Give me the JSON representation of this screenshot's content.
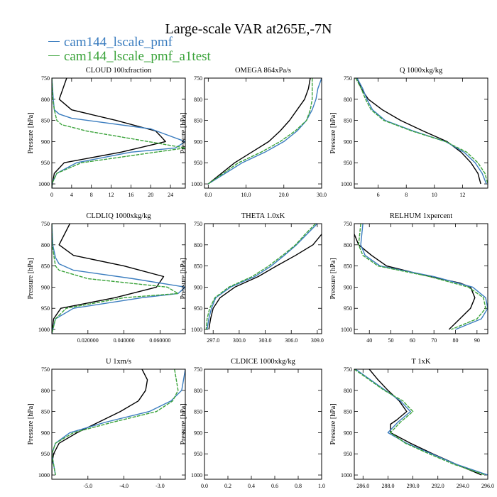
{
  "title": "Large-scale VAR at265E,-7N",
  "legend": [
    {
      "name": "cam144_lscale_pmf",
      "color": "#3b7dbf"
    },
    {
      "name": "cam144_lscale_pmf_a1test",
      "color": "#3aa33a"
    }
  ],
  "colors": {
    "obs": "#000000",
    "pmf": "#3b7dbf",
    "a1test": "#3aa33a"
  },
  "chart_data": [
    {
      "type": "line",
      "title": "CLOUD  100xfraction",
      "ylabel": "Pressure [hPa]",
      "xlim": [
        0,
        27
      ],
      "ylim": [
        750,
        1010
      ],
      "xticks": [
        0,
        4,
        8,
        12,
        16,
        20,
        24
      ],
      "xticklabels": [
        "0",
        "4",
        "8",
        "12",
        "16",
        "20",
        "24"
      ],
      "yticks": [
        750,
        800,
        850,
        900,
        950,
        1000
      ],
      "yticklabels": [
        "750",
        "800",
        "850",
        "900",
        "950",
        "1000"
      ],
      "series": [
        {
          "key": "obs",
          "y": [
            750,
            800,
            825,
            850,
            875,
            887,
            900,
            925,
            950,
            975,
            1000,
            1010
          ],
          "x": [
            3,
            1.5,
            4,
            13,
            21,
            22,
            23,
            14,
            2.5,
            0.5,
            0.1,
            0
          ]
        },
        {
          "key": "pmf",
          "y": [
            750,
            800,
            825,
            835,
            845,
            870,
            900,
            915,
            925,
            950,
            975,
            1000,
            1010
          ],
          "x": [
            0,
            0.3,
            0.5,
            1.5,
            4,
            20,
            27,
            25,
            16,
            5,
            1,
            0,
            0
          ]
        },
        {
          "key": "a1test",
          "y": [
            750,
            800,
            825,
            850,
            860,
            875,
            895,
            915,
            925,
            950,
            975,
            1000,
            1010
          ],
          "x": [
            0,
            0.2,
            0.5,
            1,
            2,
            7,
            17,
            27,
            21,
            6,
            1,
            0,
            0
          ]
        }
      ]
    },
    {
      "type": "line",
      "title": "OMEGA  864xPa/s",
      "ylabel": "Pressure [hPa]",
      "xlim": [
        -1,
        30
      ],
      "ylim": [
        750,
        1010
      ],
      "xticks": [
        0,
        10,
        20,
        30
      ],
      "xticklabels": [
        "0.0",
        "10.0",
        "20.0",
        "30.0"
      ],
      "yticks": [
        750,
        800,
        850,
        900,
        950,
        1000
      ],
      "yticklabels": [
        "750",
        "800",
        "850",
        "900",
        "950",
        "1000"
      ],
      "series": [
        {
          "key": "obs",
          "y": [
            750,
            775,
            800,
            825,
            850,
            875,
            900,
            925,
            950,
            975,
            1000
          ],
          "x": [
            27,
            26.5,
            25.5,
            23.5,
            21.5,
            19,
            16,
            11.5,
            7,
            3.5,
            0
          ]
        },
        {
          "key": "pmf",
          "y": [
            750,
            775,
            800,
            825,
            850,
            875,
            900,
            925,
            950,
            975,
            1000
          ],
          "x": [
            30,
            29,
            28.5,
            27.5,
            26,
            23.5,
            20,
            15,
            9,
            4.5,
            0
          ]
        },
        {
          "key": "a1test",
          "y": [
            750,
            775,
            800,
            825,
            850,
            875,
            900,
            925,
            950,
            975,
            1000
          ],
          "x": [
            27.5,
            27.5,
            27.5,
            27,
            26,
            23,
            19,
            14,
            8,
            4,
            0
          ]
        }
      ]
    },
    {
      "type": "line",
      "title": "Q  1000xkg/kg",
      "ylabel": "Pressure [hPa]",
      "xlim": [
        4.3,
        13.8
      ],
      "ylim": [
        750,
        1010
      ],
      "xticks": [
        6,
        8,
        10,
        12
      ],
      "xticklabels": [
        "6",
        "8",
        "10",
        "12"
      ],
      "yticks": [
        750,
        800,
        850,
        900,
        950,
        1000
      ],
      "yticklabels": [
        "750",
        "800",
        "850",
        "900",
        "950",
        "1000"
      ],
      "series": [
        {
          "key": "obs",
          "y": [
            750,
            775,
            800,
            825,
            850,
            875,
            900,
            925,
            950,
            975,
            1000
          ],
          "x": [
            4.5,
            4.8,
            5.3,
            6.3,
            7.6,
            9.2,
            10.9,
            11.9,
            12.6,
            13.1,
            13.3
          ]
        },
        {
          "key": "pmf",
          "y": [
            750,
            775,
            800,
            825,
            850,
            875,
            900,
            925,
            950,
            975,
            1000
          ],
          "x": [
            4.5,
            4.9,
            5.2,
            5.6,
            6.5,
            8.5,
            10.8,
            12.1,
            12.9,
            13.4,
            13.7
          ]
        },
        {
          "key": "a1test",
          "y": [
            750,
            775,
            800,
            825,
            850,
            875,
            900,
            925,
            950,
            975,
            1000
          ],
          "x": [
            4.4,
            4.8,
            5.1,
            5.5,
            6.4,
            8.4,
            10.8,
            12.3,
            13.1,
            13.6,
            13.8
          ]
        }
      ]
    },
    {
      "type": "line",
      "title": "CLDLIQ  1000xkg/kg",
      "ylabel": "Pressure [hPa]",
      "xlim": [
        0,
        0.074
      ],
      "ylim": [
        750,
        1010
      ],
      "xticks": [
        0.02,
        0.04,
        0.06
      ],
      "xticklabels": [
        "0.020000",
        "0.040000",
        "0.060000"
      ],
      "yticks": [
        750,
        800,
        850,
        900,
        950,
        1000
      ],
      "yticklabels": [
        "750",
        "800",
        "850",
        "900",
        "950",
        "1000"
      ],
      "series": [
        {
          "key": "obs",
          "y": [
            750,
            800,
            825,
            850,
            875,
            900,
            925,
            950,
            975,
            1010
          ],
          "x": [
            0.01,
            0.004,
            0.012,
            0.04,
            0.062,
            0.058,
            0.035,
            0.005,
            0.001,
            0
          ]
        },
        {
          "key": "pmf",
          "y": [
            750,
            800,
            830,
            845,
            860,
            880,
            900,
            915,
            925,
            950,
            975,
            1010
          ],
          "x": [
            0,
            0.0005,
            0.002,
            0.004,
            0.012,
            0.045,
            0.074,
            0.07,
            0.05,
            0.012,
            0.002,
            0
          ]
        },
        {
          "key": "a1test",
          "y": [
            750,
            800,
            850,
            860,
            880,
            900,
            915,
            925,
            950,
            975,
            1010
          ],
          "x": [
            0,
            0.0002,
            0.002,
            0.004,
            0.02,
            0.064,
            0.07,
            0.04,
            0.008,
            0.002,
            0
          ]
        }
      ]
    },
    {
      "type": "line",
      "title": "THETA  1.0xK",
      "ylabel": "Pressure [hPa]",
      "xlim": [
        296,
        309.5
      ],
      "ylim": [
        750,
        1010
      ],
      "xticks": [
        297,
        300,
        303,
        306,
        309
      ],
      "xticklabels": [
        "297.0",
        "300.0",
        "303.0",
        "306.0",
        "309.0"
      ],
      "yticks": [
        750,
        800,
        850,
        900,
        950,
        1000
      ],
      "yticklabels": [
        "750",
        "800",
        "850",
        "900",
        "950",
        "1000"
      ],
      "series": [
        {
          "key": "obs",
          "y": [
            775,
            800,
            825,
            850,
            875,
            900,
            925,
            950,
            975,
            1000
          ],
          "x": [
            309.5,
            308.5,
            306.5,
            304.3,
            302.2,
            299.5,
            297.8,
            297,
            296.7,
            296.5
          ]
        },
        {
          "key": "pmf",
          "y": [
            750,
            775,
            800,
            825,
            850,
            875,
            900,
            925,
            950,
            975,
            1000
          ],
          "x": [
            309,
            307.8,
            306.6,
            305.2,
            303.7,
            301.8,
            299,
            297.3,
            296.8,
            296.5,
            296.3
          ]
        },
        {
          "key": "a1test",
          "y": [
            750,
            775,
            800,
            825,
            850,
            875,
            900,
            925,
            950,
            975,
            1000
          ],
          "x": [
            308.8,
            307.6,
            306.5,
            305,
            303.4,
            301.5,
            298.8,
            297.2,
            296.6,
            296.3,
            296.2
          ]
        }
      ]
    },
    {
      "type": "line",
      "title": "RELHUM  1xpercent",
      "ylabel": "Pressure [hPa]",
      "xlim": [
        33,
        95
      ],
      "ylim": [
        750,
        1010
      ],
      "xticks": [
        40,
        50,
        60,
        70,
        80,
        90
      ],
      "xticklabels": [
        "40",
        "50",
        "60",
        "70",
        "80",
        "90"
      ],
      "yticks": [
        750,
        800,
        850,
        900,
        950,
        1000
      ],
      "yticklabels": [
        "750",
        "800",
        "850",
        "900",
        "950",
        "1000"
      ],
      "series": [
        {
          "key": "obs",
          "y": [
            775,
            800,
            825,
            850,
            875,
            890,
            900,
            925,
            950,
            975,
            1000
          ],
          "x": [
            33,
            35,
            41,
            48,
            68,
            82,
            87,
            89,
            87,
            82,
            77
          ]
        },
        {
          "key": "pmf",
          "y": [
            750,
            800,
            825,
            850,
            875,
            900,
            925,
            950,
            975,
            1000
          ],
          "x": [
            37,
            36,
            38,
            45,
            70,
            88,
            94,
            95,
            92,
            80
          ]
        },
        {
          "key": "a1test",
          "y": [
            750,
            800,
            825,
            850,
            875,
            900,
            925,
            950,
            975,
            1000
          ],
          "x": [
            36,
            35,
            37,
            44,
            68,
            86,
            93,
            94,
            90,
            78
          ]
        }
      ]
    },
    {
      "type": "line",
      "title": "U  1xm/s",
      "ylabel": "Pressure [hPa]",
      "xlim": [
        -6,
        -2.3
      ],
      "ylim": [
        750,
        1010
      ],
      "xticks": [
        -5,
        -4,
        -3
      ],
      "xticklabels": [
        "-5.0",
        "-4.0",
        "-3.0"
      ],
      "yticks": [
        750,
        800,
        850,
        900,
        950,
        1000
      ],
      "yticklabels": [
        "750",
        "800",
        "850",
        "900",
        "950",
        "1000"
      ],
      "series": [
        {
          "key": "obs",
          "y": [
            750,
            775,
            800,
            825,
            850,
            875,
            900,
            925,
            950,
            975,
            1000
          ],
          "x": [
            -3.5,
            -3.35,
            -3.4,
            -3.6,
            -4.1,
            -4.7,
            -5.3,
            -5.8,
            -5.95,
            -6,
            -6
          ]
        },
        {
          "key": "pmf",
          "y": [
            750,
            775,
            800,
            825,
            850,
            875,
            900,
            925,
            950,
            975,
            1000
          ],
          "x": [
            -2.3,
            -2.35,
            -2.4,
            -2.7,
            -3.3,
            -4.5,
            -5.5,
            -5.9,
            -6,
            -5.95,
            -5.9
          ]
        },
        {
          "key": "a1test",
          "y": [
            750,
            775,
            800,
            825,
            850,
            875,
            900,
            925,
            950,
            975,
            1000
          ],
          "x": [
            -2.6,
            -2.55,
            -2.5,
            -2.65,
            -3.1,
            -4.3,
            -5.4,
            -5.9,
            -6,
            -5.95,
            -5.9
          ]
        }
      ]
    },
    {
      "type": "line",
      "title": "CLDICE  1000xkg/kg",
      "ylabel": "Pressure [hPa]",
      "xlim": [
        0,
        1
      ],
      "ylim": [
        750,
        1010
      ],
      "xticks": [
        0,
        0.2,
        0.4,
        0.6,
        0.8,
        1
      ],
      "xticklabels": [
        "0.0",
        "0.2",
        "0.4",
        "0.6",
        "0.8",
        "1.0"
      ],
      "yticks": [
        750,
        800,
        850,
        900,
        950,
        1000
      ],
      "yticklabels": [
        "750",
        "800",
        "850",
        "900",
        "950",
        "1000"
      ],
      "series": []
    },
    {
      "type": "line",
      "title": "T  1xK",
      "ylabel": "Pressure [hPa]",
      "xlim": [
        285.3,
        296
      ],
      "ylim": [
        750,
        1010
      ],
      "xticks": [
        286,
        288,
        290,
        292,
        294,
        296
      ],
      "xticklabels": [
        "286.0",
        "288.0",
        "290.0",
        "292.0",
        "294.0",
        "296.0"
      ],
      "yticks": [
        750,
        800,
        850,
        900,
        950,
        1000
      ],
      "yticklabels": [
        "750",
        "800",
        "850",
        "900",
        "950",
        "1000"
      ],
      "series": [
        {
          "key": "obs",
          "y": [
            750,
            775,
            800,
            825,
            850,
            870,
            880,
            900,
            925,
            950,
            975,
            1000
          ],
          "x": [
            286.5,
            287.2,
            288,
            288.9,
            289.5,
            288.7,
            288.2,
            288.2,
            289.8,
            291.6,
            293.5,
            295.5
          ]
        },
        {
          "key": "pmf",
          "y": [
            750,
            775,
            800,
            825,
            850,
            875,
            900,
            925,
            950,
            975,
            1000
          ],
          "x": [
            285.4,
            286.6,
            287.8,
            289,
            289.8,
            288.8,
            288,
            289.5,
            291.5,
            293.5,
            296
          ]
        },
        {
          "key": "a1test",
          "y": [
            750,
            775,
            800,
            825,
            850,
            875,
            900,
            925,
            950,
            975,
            1000
          ],
          "x": [
            285.3,
            286.5,
            287.7,
            289.2,
            290,
            289,
            288.2,
            289.4,
            291.3,
            293.3,
            295.8
          ]
        }
      ]
    }
  ]
}
